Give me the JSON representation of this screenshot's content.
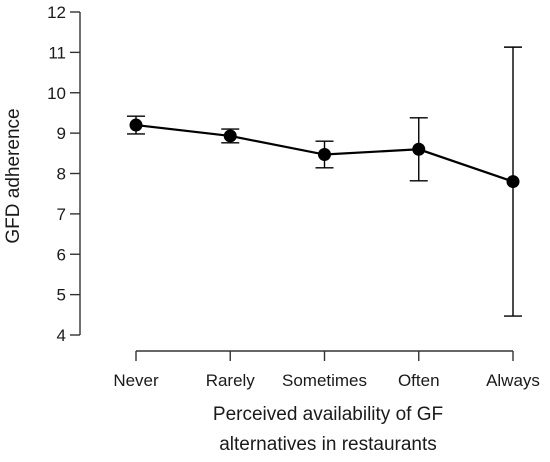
{
  "chart_data": {
    "type": "line",
    "categories": [
      "Never",
      "Rarely",
      "Sometimes",
      "Often",
      "Always"
    ],
    "values": [
      9.2,
      8.93,
      8.47,
      8.6,
      7.8
    ],
    "error_low": [
      8.98,
      8.76,
      8.14,
      7.82,
      4.47
    ],
    "error_high": [
      9.42,
      9.1,
      8.8,
      9.38,
      11.13
    ],
    "ylim": [
      4,
      12
    ],
    "yticks": [
      "4",
      "5",
      "6",
      "7",
      "8",
      "9",
      "10",
      "11",
      "12"
    ],
    "ylabel": "GFD adherence",
    "xlabel_lines": [
      "Perceived availability of GF",
      "alternatives in restaurants"
    ],
    "grid": false,
    "colors": {
      "line": "#000000",
      "marker": "#000000",
      "axis": "#333333"
    }
  }
}
